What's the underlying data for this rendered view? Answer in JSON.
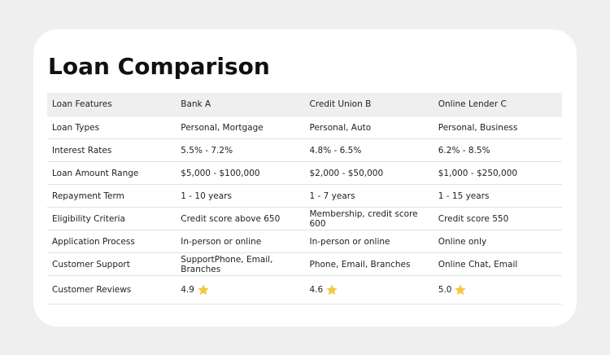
{
  "title": "Loan Comparison",
  "table": {
    "header": [
      "Loan Features",
      "Bank A",
      "Credit Union B",
      "Online Lender C"
    ],
    "rows": [
      [
        "Loan Types",
        "Personal, Mortgage",
        "Personal, Auto",
        "Personal, Business"
      ],
      [
        "Interest Rates",
        "5.5% - 7.2%",
        "4.8% - 6.5%",
        "6.2% - 8.5%"
      ],
      [
        "Loan Amount Range",
        "$5,000 - $100,000",
        "$2,000 - $50,000",
        "$1,000 - $250,000"
      ],
      [
        "Repayment Term",
        "1 - 10 years",
        "1 - 7 years",
        "1 - 15 years"
      ],
      [
        "Eligibility Criteria",
        "Credit score above 650",
        "Membership, credit score 600",
        "Credit score 550"
      ],
      [
        "Application Process",
        "In-person or online",
        "In-person or online",
        "Online only"
      ],
      [
        "Customer Support",
        "SupportPhone, Email, Branches",
        "Phone, Email, Branches",
        "Online Chat, Email"
      ],
      [
        "Customer Reviews",
        "4.9",
        "4.6",
        "5.0"
      ]
    ]
  }
}
